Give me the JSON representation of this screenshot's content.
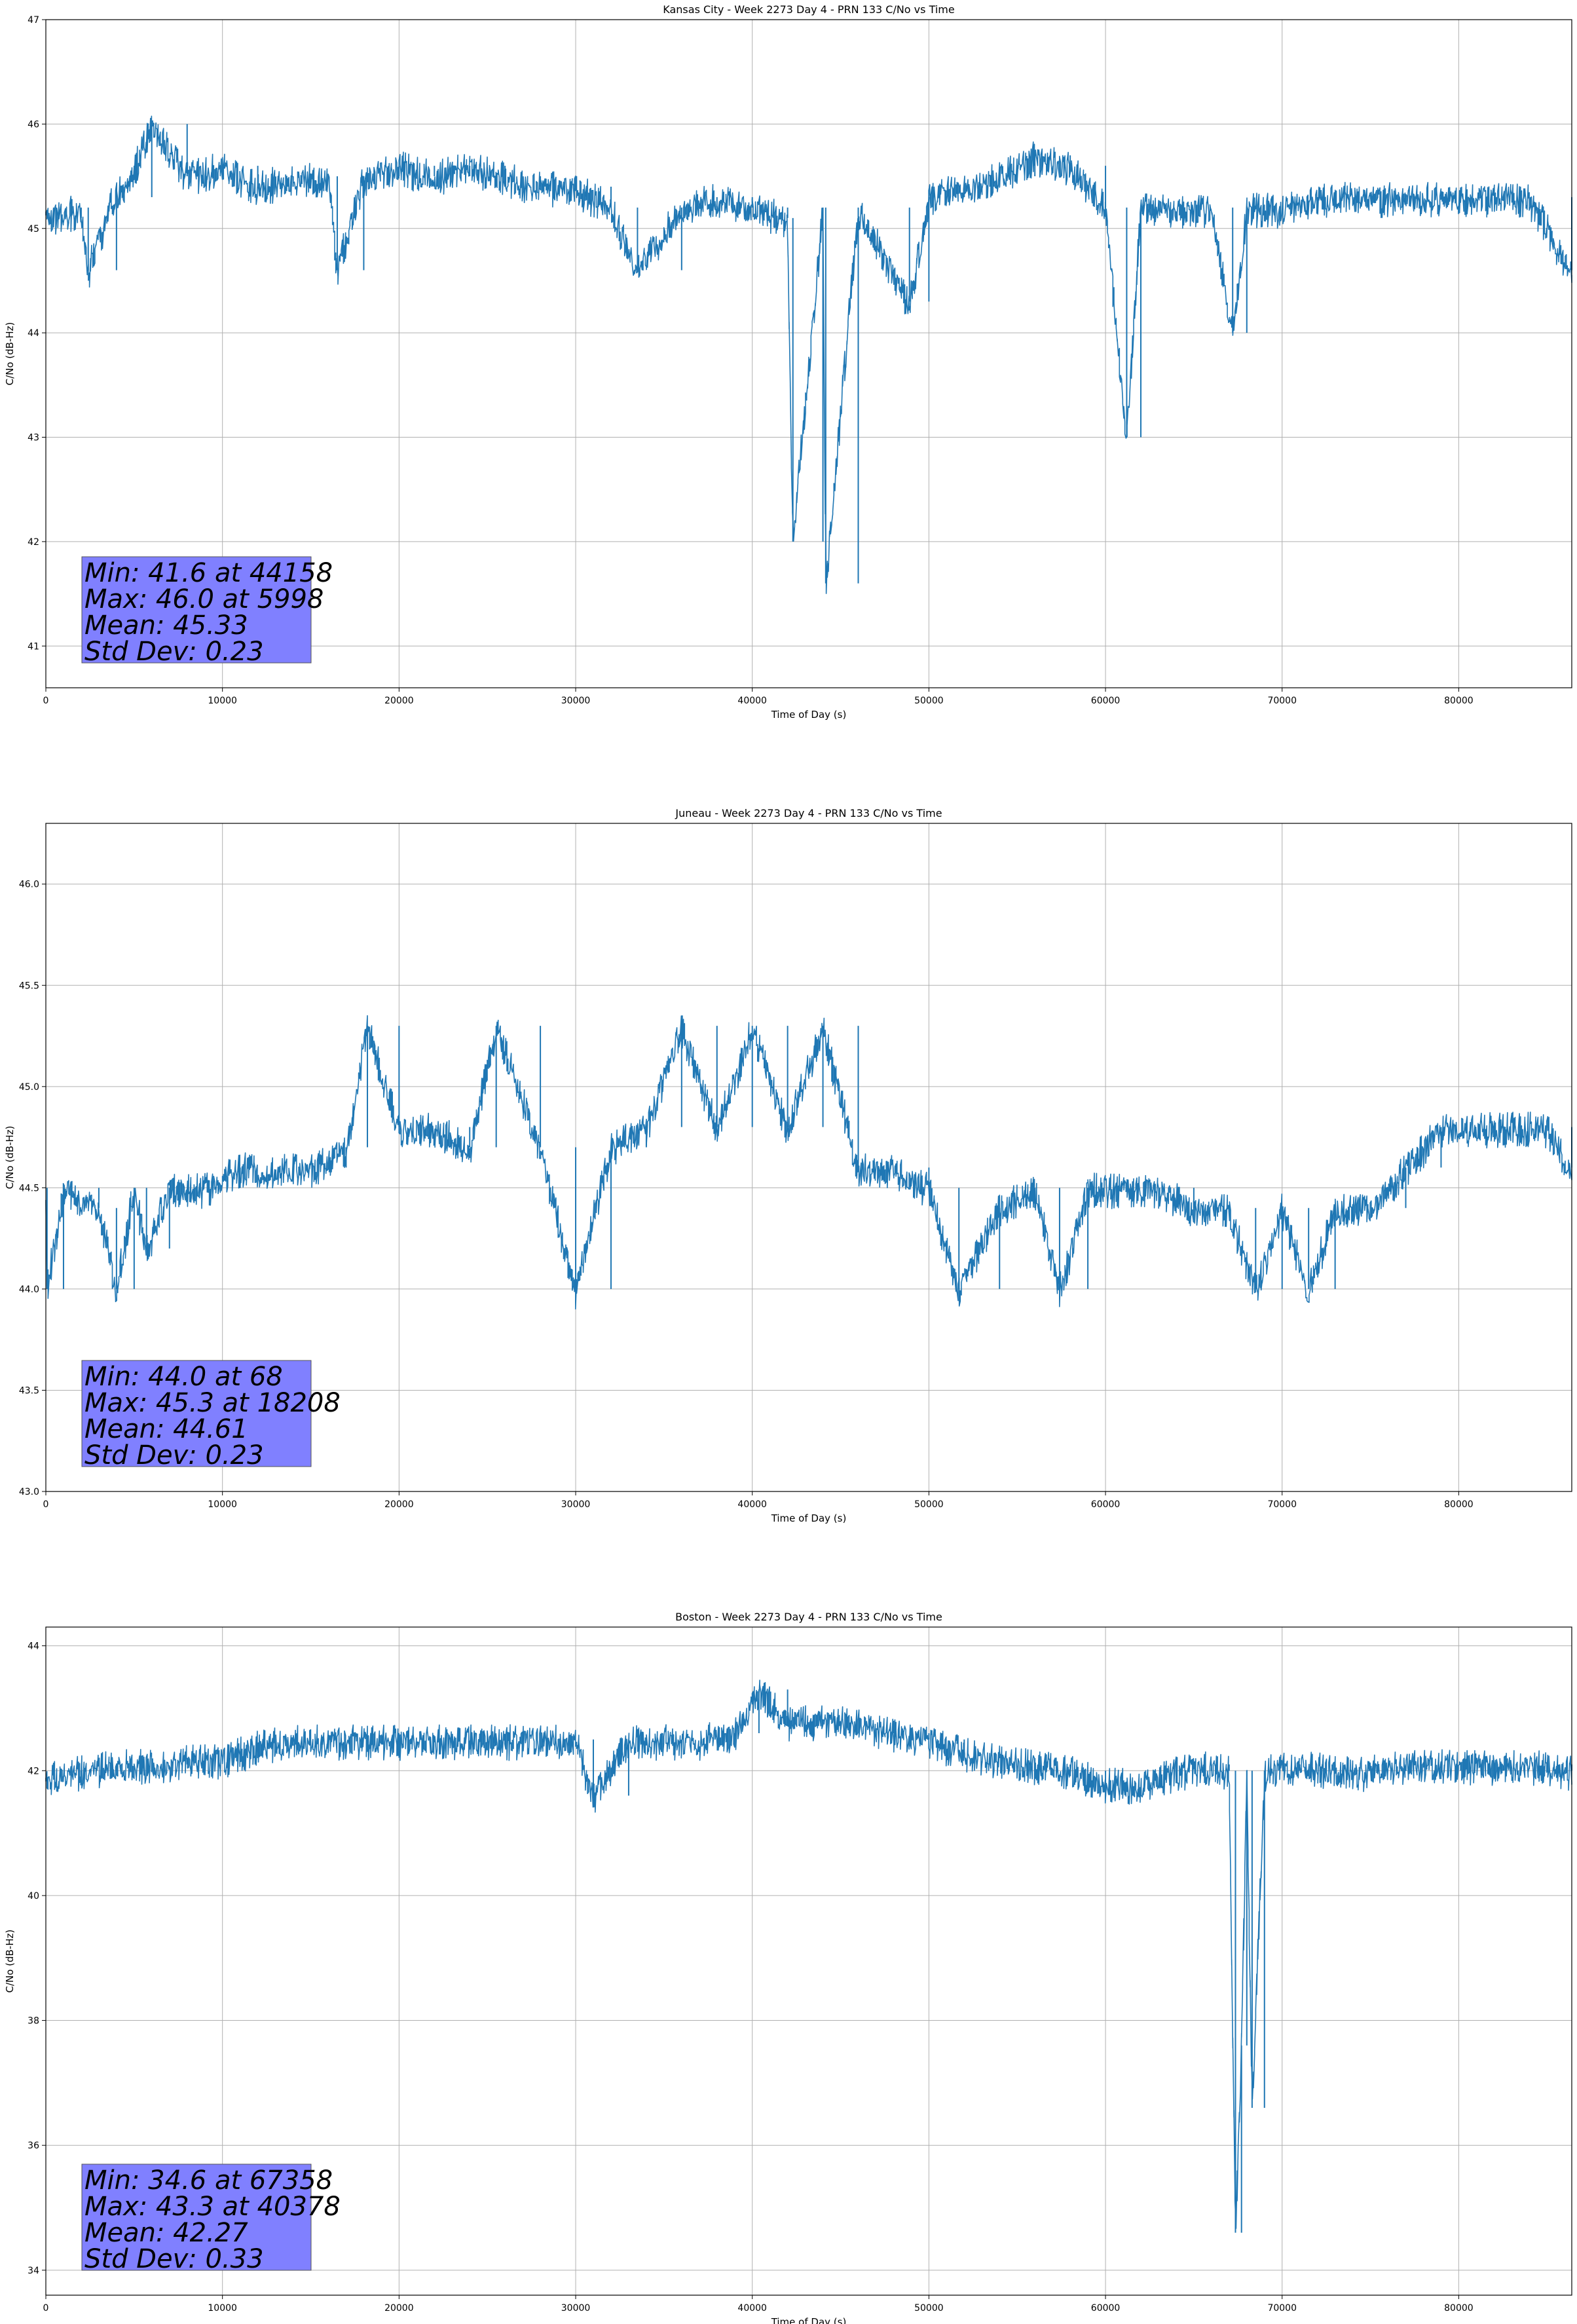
{
  "figure": {
    "line_color": "#1f77b4",
    "stats_box_color": "#8080ff"
  },
  "chart_data": [
    {
      "type": "line",
      "title": "Kansas City - Week 2273 Day 4 - PRN 133 C/No vs Time",
      "xlabel": "Time of Day (s)",
      "ylabel": "C/No (dB-Hz)",
      "xlim": [
        0,
        86400
      ],
      "ylim": [
        40.6,
        47
      ],
      "xticks": [
        0,
        10000,
        20000,
        30000,
        40000,
        50000,
        60000,
        70000,
        80000
      ],
      "yticks": [
        41,
        42,
        43,
        44,
        45,
        46,
        47
      ],
      "ytick_labels": [
        "41",
        "42",
        "43",
        "44",
        "45",
        "46",
        "47"
      ],
      "grid": true,
      "stats": {
        "min_line": "Min: 41.6 at 44158",
        "max_line": "Max: 46.0 at 5998",
        "mean_line": "Mean: 45.33",
        "std_line": "Std Dev: 0.23"
      },
      "series": [
        {
          "values_description_free": true,
          "x": [
            0,
            2000,
            2400,
            4000,
            4400,
            5998,
            8000,
            10000,
            12000,
            14000,
            16000,
            16500,
            18000,
            20000,
            22000,
            24000,
            26000,
            28000,
            30000,
            32000,
            33500,
            36000,
            38000,
            40000,
            42000,
            42300,
            44000,
            44158,
            46000,
            48900,
            50000,
            52000,
            54000,
            56000,
            58000,
            60000,
            61200,
            62000,
            64000,
            66000,
            67200,
            68000,
            70000,
            72000,
            74000,
            76000,
            78000,
            80000,
            82000,
            84000,
            86400
          ],
          "values": [
            45.1,
            45.2,
            44.6,
            45.4,
            45.3,
            46.0,
            45.5,
            45.6,
            45.4,
            45.5,
            45.5,
            44.6,
            45.5,
            45.6,
            45.5,
            45.6,
            45.5,
            45.4,
            45.4,
            45.2,
            44.6,
            45.2,
            45.3,
            45.2,
            45.1,
            42.0,
            45.2,
            41.6,
            45.2,
            44.3,
            45.3,
            45.4,
            45.5,
            45.7,
            45.6,
            45.2,
            43.0,
            45.2,
            45.2,
            45.2,
            44.0,
            45.2,
            45.2,
            45.3,
            45.3,
            45.3,
            45.3,
            45.3,
            45.3,
            45.3,
            44.6
          ]
        }
      ]
    },
    {
      "type": "line",
      "title": "Juneau - Week 2273 Day 4 - PRN 133 C/No vs Time",
      "xlabel": "Time of Day (s)",
      "ylabel": "C/No (dB-Hz)",
      "xlim": [
        0,
        86400
      ],
      "ylim": [
        43.0,
        46.3
      ],
      "xticks": [
        0,
        10000,
        20000,
        30000,
        40000,
        50000,
        60000,
        70000,
        80000
      ],
      "yticks": [
        43.0,
        43.5,
        44.0,
        44.5,
        45.0,
        45.5,
        46.0
      ],
      "ytick_labels": [
        "43.0",
        "43.5",
        "44.0",
        "44.5",
        "45.0",
        "45.5",
        "46.0"
      ],
      "grid": true,
      "stats": {
        "min_line": "Min: 44.0 at 68",
        "max_line": "Max: 45.3 at 18208",
        "mean_line": "Mean: 44.61",
        "std_line": "Std Dev: 0.23"
      },
      "series": [
        {
          "x": [
            0,
            68,
            1000,
            3000,
            4000,
            5000,
            5700,
            7000,
            9000,
            11000,
            13000,
            15000,
            17000,
            18208,
            20000,
            22000,
            24000,
            25500,
            28000,
            30000,
            32000,
            34000,
            36000,
            38000,
            40000,
            42000,
            44000,
            46000,
            48000,
            50000,
            51700,
            54000,
            56000,
            57400,
            59000,
            61000,
            63000,
            65000,
            67000,
            68500,
            70000,
            71500,
            73000,
            75000,
            77000,
            79000,
            81000,
            83000,
            85000,
            86400
          ],
          "values": [
            44.5,
            44.0,
            44.5,
            44.4,
            44.0,
            44.5,
            44.2,
            44.5,
            44.5,
            44.6,
            44.6,
            44.6,
            44.7,
            45.3,
            44.8,
            44.8,
            44.7,
            45.3,
            44.7,
            44.0,
            44.7,
            44.8,
            45.3,
            44.8,
            45.3,
            44.8,
            45.3,
            44.6,
            44.6,
            44.5,
            44.0,
            44.4,
            44.5,
            44.0,
            44.5,
            44.5,
            44.5,
            44.4,
            44.4,
            44.0,
            44.4,
            44.0,
            44.4,
            44.4,
            44.6,
            44.8,
            44.8,
            44.8,
            44.8,
            44.6
          ]
        }
      ]
    },
    {
      "type": "line",
      "title": "Boston - Week 2273 Day 4 - PRN 133 C/No vs Time",
      "xlabel": "Time of Day (s)",
      "ylabel": "C/No (dB-Hz)",
      "xlim": [
        0,
        86400
      ],
      "ylim": [
        33.6,
        44.3
      ],
      "xticks": [
        0,
        10000,
        20000,
        30000,
        40000,
        50000,
        60000,
        70000,
        80000
      ],
      "yticks": [
        34,
        36,
        38,
        40,
        42,
        44
      ],
      "ytick_labels": [
        "34",
        "36",
        "38",
        "40",
        "42",
        "44"
      ],
      "grid": true,
      "stats": {
        "min_line": "Min: 34.6 at 67358",
        "max_line": "Max: 43.3 at 40378",
        "mean_line": "Mean: 42.27",
        "std_line": "Std Dev: 0.33"
      },
      "series": [
        {
          "x": [
            0,
            2000,
            4000,
            6000,
            8000,
            10000,
            12000,
            14000,
            16000,
            18000,
            20000,
            22000,
            24000,
            26000,
            28000,
            30000,
            31000,
            33000,
            35000,
            37000,
            39000,
            40378,
            42000,
            44000,
            46000,
            48000,
            50000,
            52000,
            54000,
            56000,
            58000,
            60000,
            62000,
            64000,
            66000,
            67000,
            67358,
            67700,
            68000,
            68300,
            69000,
            71000,
            73000,
            75000,
            77000,
            79000,
            81000,
            83000,
            85000,
            86400
          ],
          "values": [
            41.9,
            42.0,
            42.1,
            42.1,
            42.2,
            42.2,
            42.4,
            42.5,
            42.5,
            42.5,
            42.5,
            42.5,
            42.5,
            42.5,
            42.5,
            42.5,
            41.6,
            42.5,
            42.5,
            42.5,
            42.6,
            43.3,
            42.8,
            42.8,
            42.8,
            42.6,
            42.5,
            42.3,
            42.2,
            42.1,
            42.0,
            41.8,
            41.8,
            42.0,
            42.1,
            42.0,
            34.6,
            37.6,
            42.0,
            36.6,
            42.0,
            42.1,
            42.0,
            42.0,
            42.1,
            42.1,
            42.1,
            42.1,
            42.1,
            42.0
          ]
        }
      ]
    }
  ]
}
